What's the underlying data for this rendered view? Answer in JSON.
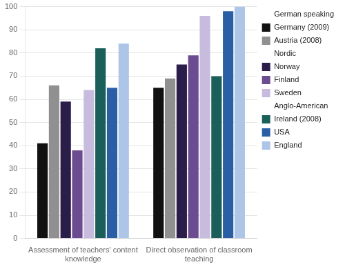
{
  "chart_data": {
    "type": "bar",
    "categories": [
      "Assessment of teachers' content\nknowledge",
      "Direct observation of classroom\nteaching"
    ],
    "series": [
      {
        "name": "Germany (2009)",
        "values": [
          41,
          65
        ],
        "color": "#111111",
        "group": "German speaking"
      },
      {
        "name": "Austria (2008)",
        "values": [
          66,
          69
        ],
        "color": "#909090",
        "group": "German speaking"
      },
      {
        "name": "Norway",
        "values": [
          59,
          75
        ],
        "color": "#2a1d4a",
        "group": "Nordic"
      },
      {
        "name": "Finland",
        "values": [
          38,
          79
        ],
        "color": "#6b4c90",
        "group": "Nordic"
      },
      {
        "name": "Sweden",
        "values": [
          64,
          96
        ],
        "color": "#c8bcde",
        "group": "Nordic"
      },
      {
        "name": "Ireland (2008)",
        "values": [
          82,
          70
        ],
        "color": "#1a5f5a",
        "group": "Anglo-American"
      },
      {
        "name": "USA",
        "values": [
          65,
          98
        ],
        "color": "#2b5fa5",
        "group": "Anglo-American"
      },
      {
        "name": "England",
        "values": [
          84,
          100
        ],
        "color": "#adc6e8",
        "group": "Anglo-American"
      }
    ],
    "ylim": [
      0,
      100
    ],
    "yticks": [
      0,
      10,
      20,
      30,
      40,
      50,
      60,
      70,
      80,
      90,
      100
    ],
    "grid": true,
    "legend": "right"
  }
}
